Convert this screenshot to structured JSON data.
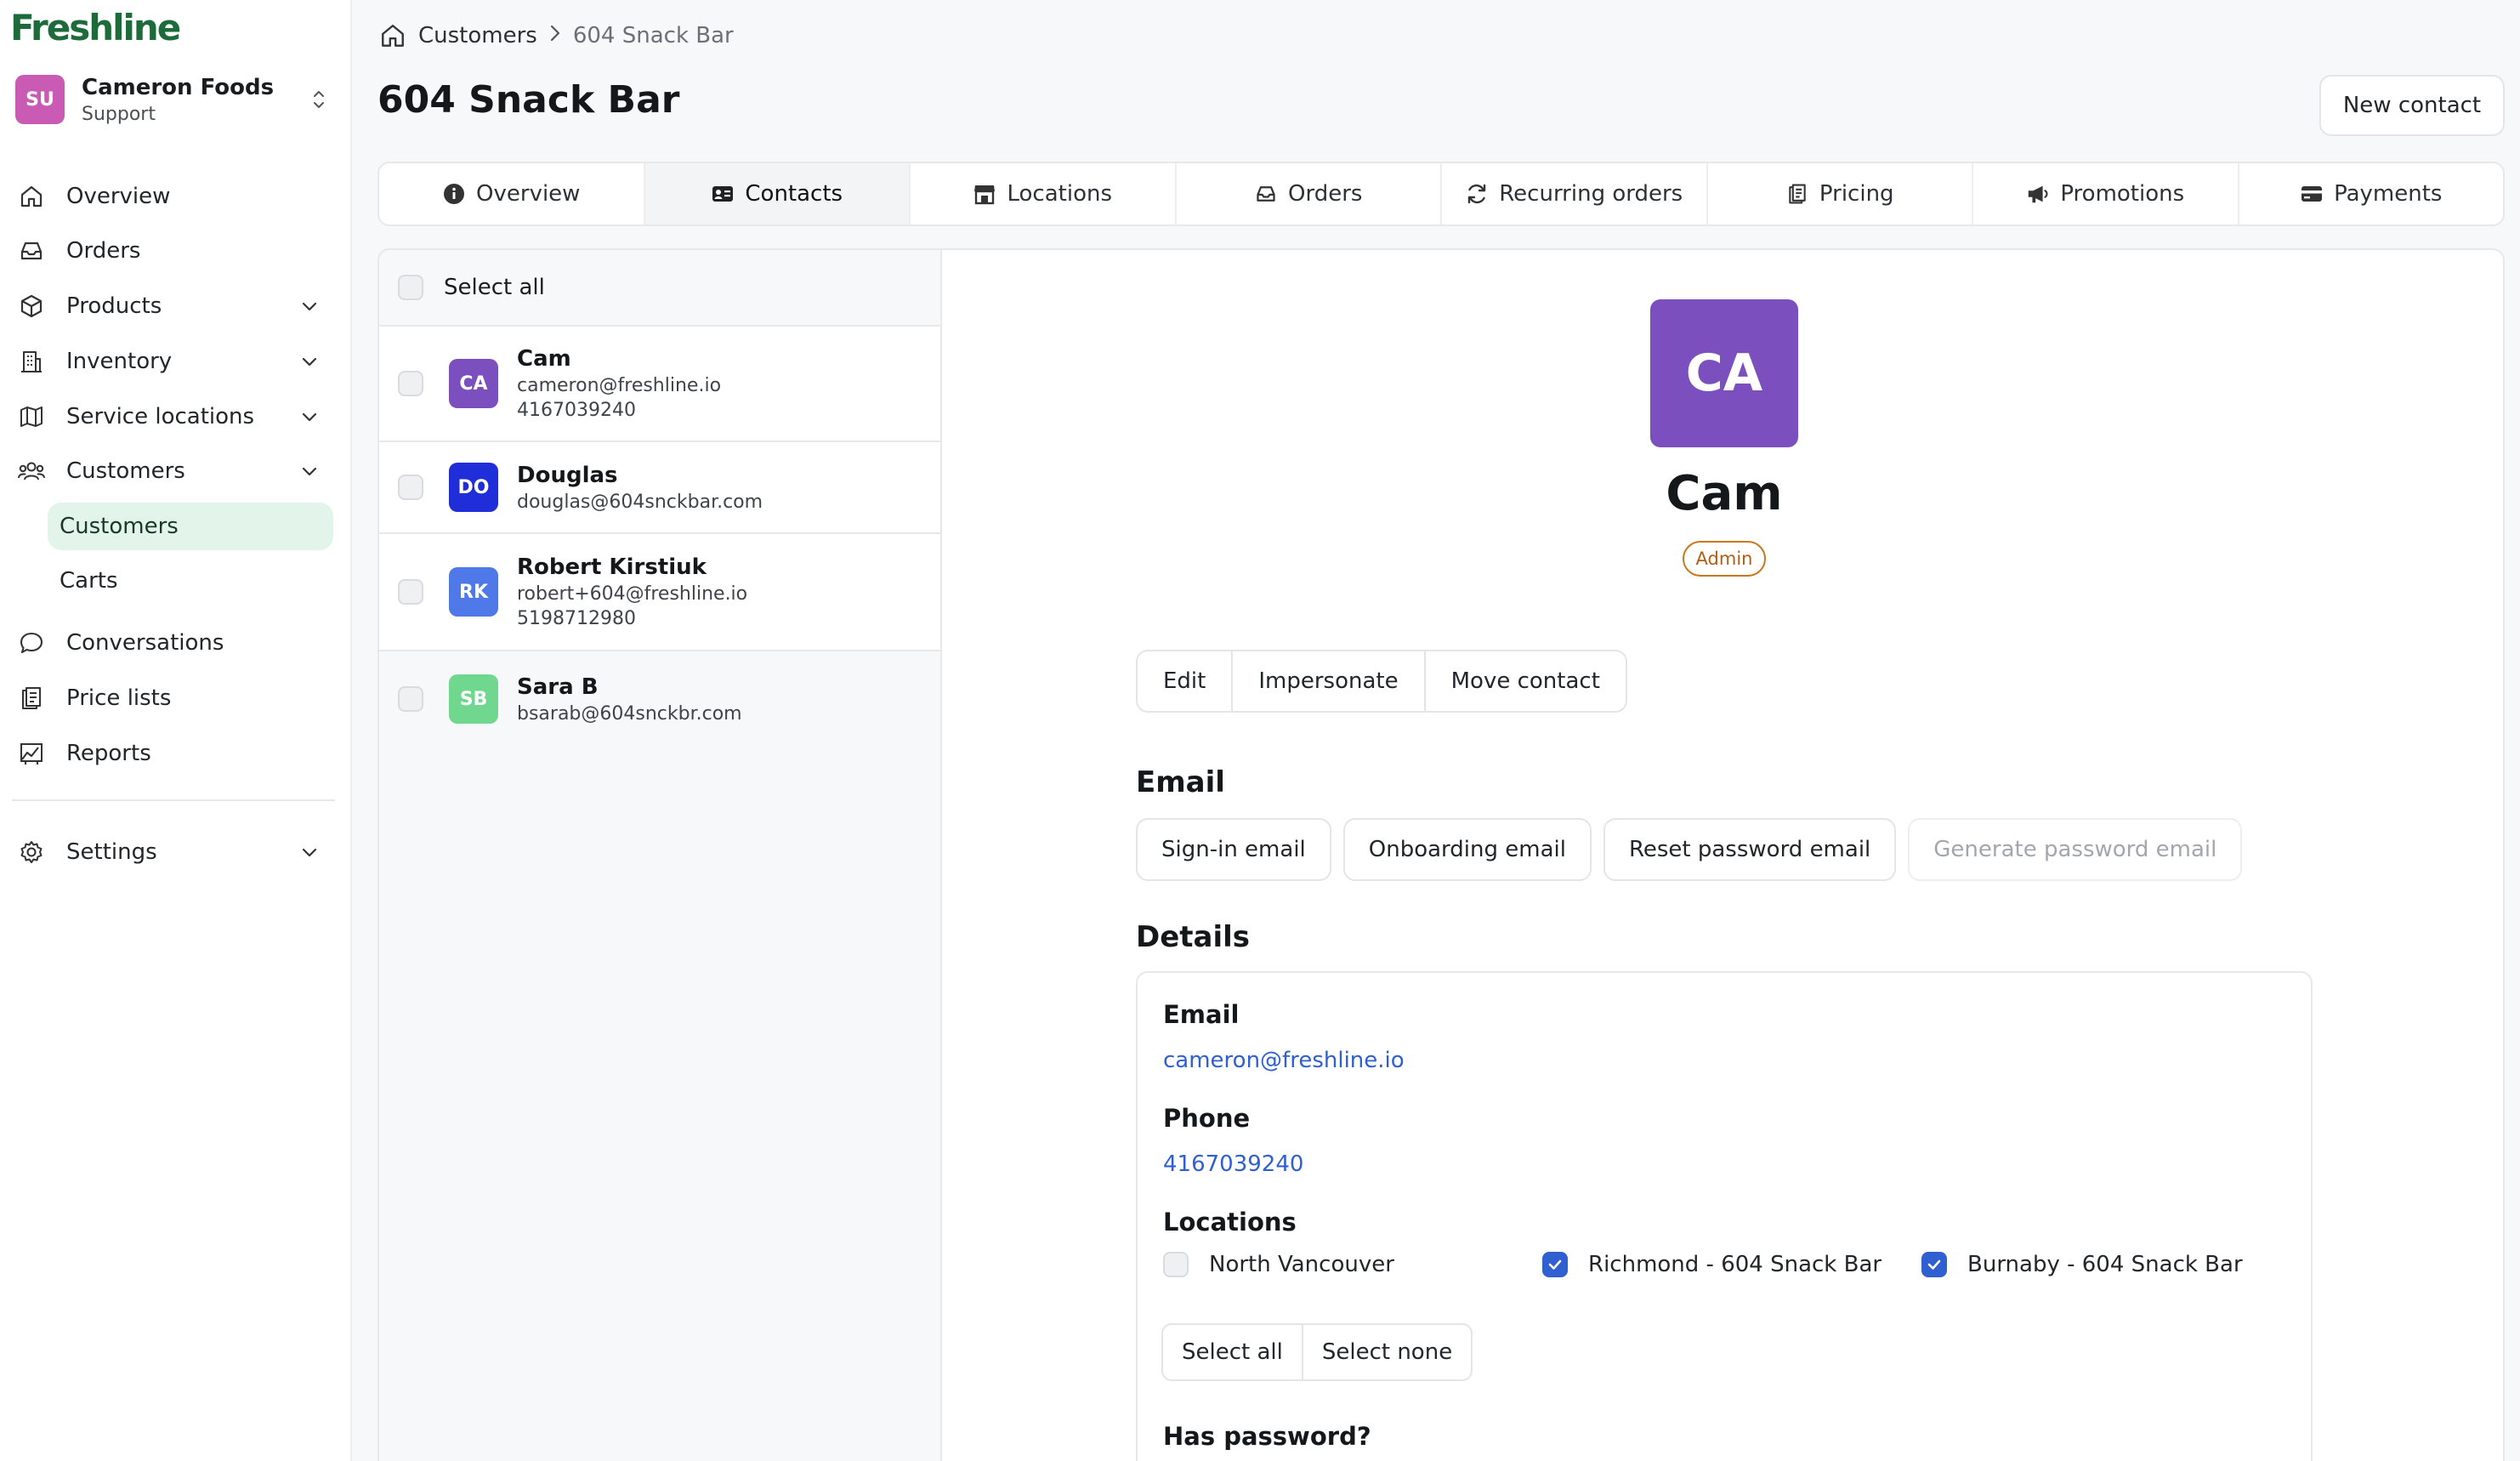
{
  "app": {
    "logo": "Freshline"
  },
  "account": {
    "initials": "SU",
    "name": "Cameron Foods",
    "role": "Support",
    "avatar_color": "#c95bb5"
  },
  "nav": {
    "overview": "Overview",
    "orders": "Orders",
    "products": "Products",
    "inventory": "Inventory",
    "service_locations": "Service locations",
    "customers": "Customers",
    "customers_sub": "Customers",
    "carts": "Carts",
    "conversations": "Conversations",
    "price_lists": "Price lists",
    "reports": "Reports",
    "settings": "Settings"
  },
  "breadcrumb": {
    "parent": "Customers",
    "current": "604 Snack Bar"
  },
  "page": {
    "title": "604 Snack Bar",
    "new_contact": "New contact"
  },
  "tabs": [
    "Overview",
    "Contacts",
    "Locations",
    "Orders",
    "Recurring orders",
    "Pricing",
    "Promotions",
    "Payments"
  ],
  "active_tab": "Contacts",
  "contact_list": {
    "select_all": "Select all",
    "contacts": [
      {
        "initials": "CA",
        "name": "Cam",
        "email": "cameron@freshline.io",
        "phone": "4167039240",
        "color": "#7b4fbd"
      },
      {
        "initials": "DO",
        "name": "Douglas",
        "email": "douglas@604snckbar.com",
        "phone": "",
        "color": "#1f2ed8"
      },
      {
        "initials": "RK",
        "name": "Robert Kirstiuk",
        "email": "robert+604@freshline.io",
        "phone": "5198712980",
        "color": "#4f78e8"
      },
      {
        "initials": "SB",
        "name": "Sara B",
        "email": "bsarab@604snckbr.com",
        "phone": "",
        "color": "#6fd88e"
      }
    ]
  },
  "detail": {
    "initials": "CA",
    "name": "Cam",
    "role": "Admin",
    "actions": {
      "edit": "Edit",
      "impersonate": "Impersonate",
      "move": "Move contact"
    },
    "email_heading": "Email",
    "email_buttons": {
      "sign_in": "Sign-in email",
      "onboarding": "Onboarding email",
      "reset": "Reset password email",
      "generate": "Generate password email"
    },
    "details_heading": "Details",
    "email_label": "Email",
    "email_value": "cameron@freshline.io",
    "phone_label": "Phone",
    "phone_value": "4167039240",
    "locations_label": "Locations",
    "locations": [
      {
        "name": "North Vancouver",
        "checked": false
      },
      {
        "name": "Richmond - 604 Snack Bar",
        "checked": true
      },
      {
        "name": "Burnaby - 604 Snack Bar",
        "checked": true
      }
    ],
    "select_all": "Select all",
    "select_none": "Select none",
    "has_password_label": "Has password?"
  },
  "colors": {
    "brand": "#1d6b3a",
    "accent": "#2f5fd0",
    "active_nav_bg": "#e3f5ea",
    "admin_badge": "#c8781c"
  }
}
